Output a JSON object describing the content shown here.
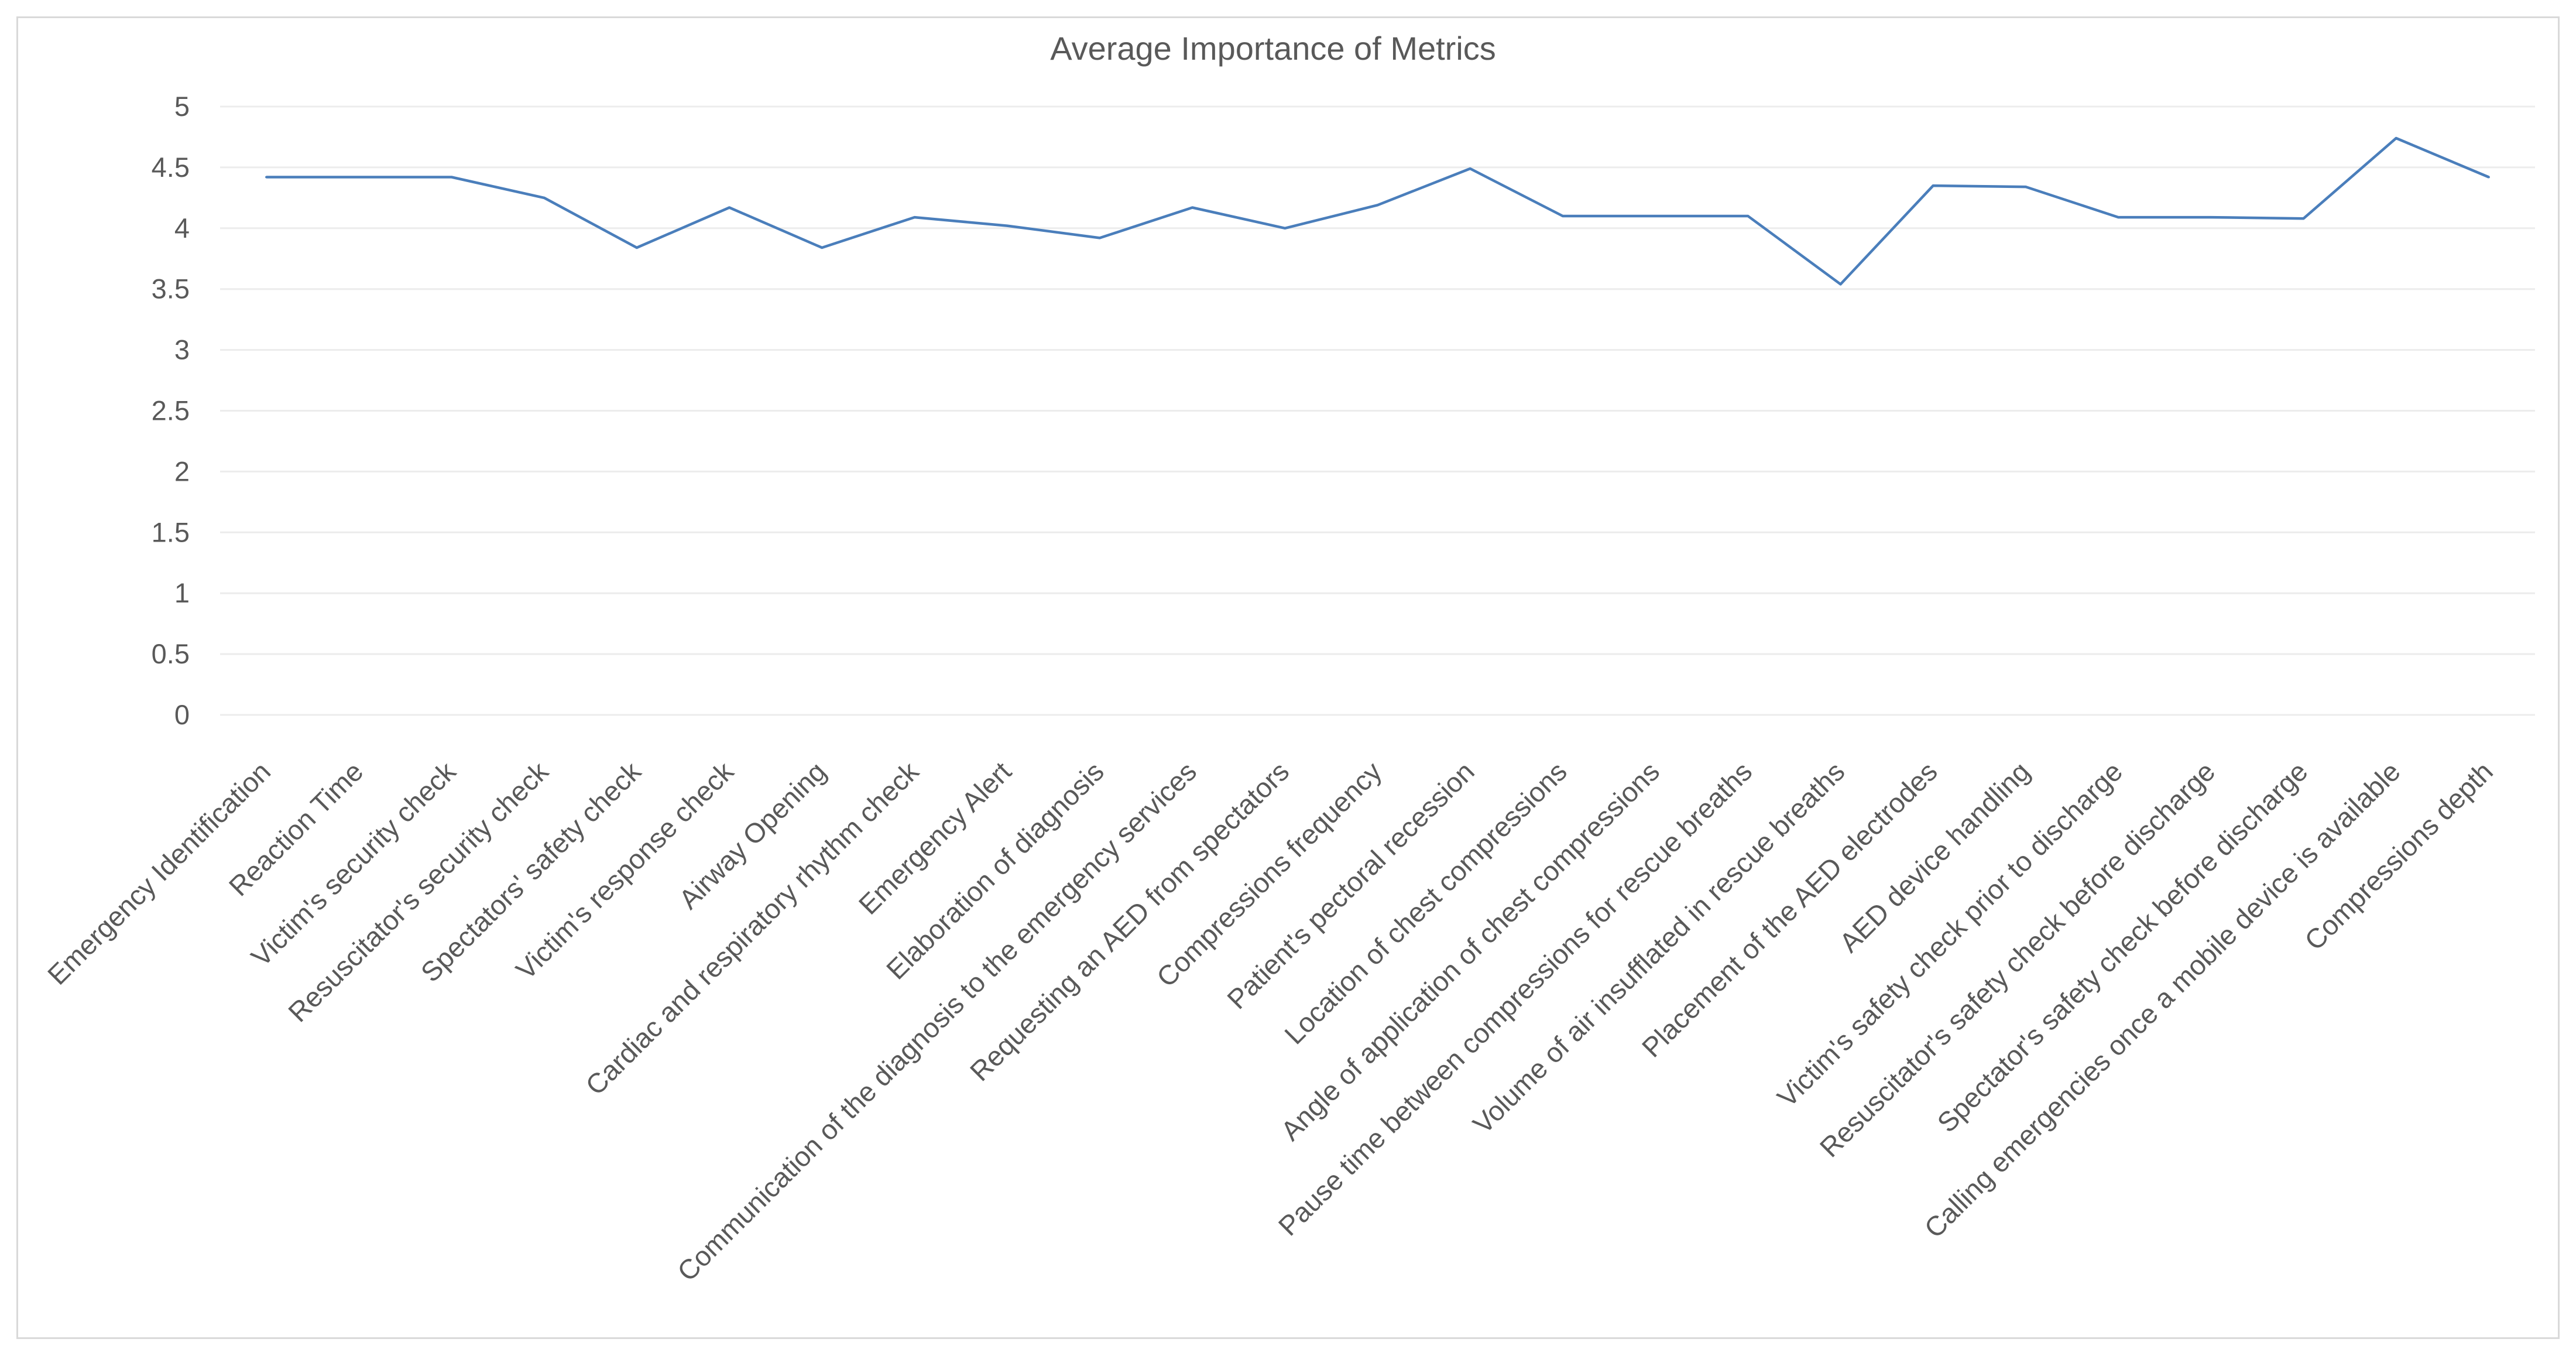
{
  "chart_data": {
    "type": "line",
    "title": "Average Importance of Metrics",
    "xlabel": "",
    "ylabel": "",
    "ylim": [
      0,
      5
    ],
    "yticks": [
      0,
      0.5,
      1,
      1.5,
      2,
      2.5,
      3,
      3.5,
      4,
      4.5,
      5
    ],
    "ytick_labels": [
      "0",
      "0.5",
      "1",
      "1.5",
      "2",
      "2.5",
      "3",
      "3.5",
      "4",
      "4.5",
      "5"
    ],
    "grid": true,
    "legend": "none",
    "line_color": "#4a7ebb",
    "categories": [
      "Emergency Identification",
      "Reaction Time",
      "Victim's security check",
      "Resuscitator's security check",
      "Spectators' safety check",
      "Victim's response check",
      "Airway Opening",
      "Cardiac and respiratory rhythm check",
      "Emergency Alert",
      "Elaboration of diagnosis",
      "Communication of the diagnosis to the emergency services",
      "Requesting an AED from spectators",
      "Compressions frequency",
      "Patient's pectoral recession",
      "Location of chest compressions",
      "Angle of application of chest compressions",
      "Pause time between compressions for rescue breaths",
      "Volume of air insufflated in rescue breaths",
      "Placement of the AED electrodes",
      "AED device handling",
      "Victim's safety check prior to discharge",
      "Resuscitator's safety check before discharge",
      "Spectator's safety check before discharge",
      "Calling emergencies once a mobile device is available",
      "Compressions depth"
    ],
    "series": [
      {
        "values": [
          4.42,
          4.42,
          4.42,
          4.25,
          3.84,
          4.17,
          3.84,
          4.09,
          4.02,
          3.92,
          4.17,
          4.0,
          4.19,
          4.49,
          4.1,
          4.1,
          4.1,
          3.54,
          4.35,
          4.34,
          4.09,
          4.09,
          4.08,
          4.74,
          4.42
        ]
      }
    ]
  }
}
